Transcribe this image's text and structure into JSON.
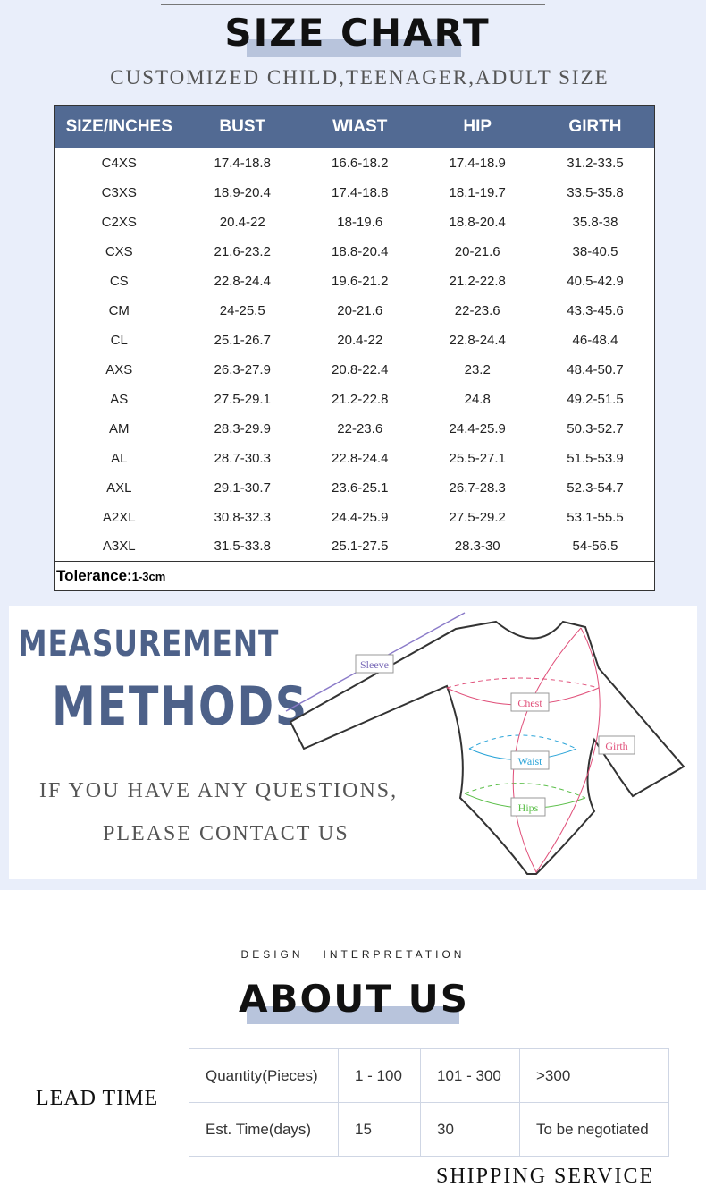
{
  "size_chart": {
    "title": "SIZE CHART",
    "subtitle": "CUSTOMIZED CHILD,TEENAGER,ADULT SIZE",
    "headers": [
      "SIZE/INCHES",
      "BUST",
      "WIAST",
      "HIP",
      "GIRTH"
    ],
    "rows": [
      [
        "C4XS",
        "17.4-18.8",
        "16.6-18.2",
        "17.4-18.9",
        "31.2-33.5"
      ],
      [
        "C3XS",
        "18.9-20.4",
        "17.4-18.8",
        "18.1-19.7",
        "33.5-35.8"
      ],
      [
        "C2XS",
        "20.4-22",
        "18-19.6",
        "18.8-20.4",
        "35.8-38"
      ],
      [
        "CXS",
        "21.6-23.2",
        "18.8-20.4",
        "20-21.6",
        "38-40.5"
      ],
      [
        "CS",
        "22.8-24.4",
        "19.6-21.2",
        "21.2-22.8",
        "40.5-42.9"
      ],
      [
        "CM",
        "24-25.5",
        "20-21.6",
        "22-23.6",
        "43.3-45.6"
      ],
      [
        "CL",
        "25.1-26.7",
        "20.4-22",
        "22.8-24.4",
        "46-48.4"
      ],
      [
        "AXS",
        "26.3-27.9",
        "20.8-22.4",
        "23.2",
        "48.4-50.7"
      ],
      [
        "AS",
        "27.5-29.1",
        "21.2-22.8",
        "24.8",
        "49.2-51.5"
      ],
      [
        "AM",
        "28.3-29.9",
        "22-23.6",
        "24.4-25.9",
        "50.3-52.7"
      ],
      [
        "AL",
        "28.7-30.3",
        "22.8-24.4",
        "25.5-27.1",
        "51.5-53.9"
      ],
      [
        "AXL",
        "29.1-30.7",
        "23.6-25.1",
        "26.7-28.3",
        "52.3-54.7"
      ],
      [
        "A2XL",
        "30.8-32.3",
        "24.4-25.9",
        "27.5-29.2",
        "53.1-55.5"
      ],
      [
        "A3XL",
        "31.5-33.8",
        "25.1-27.5",
        "28.3-30",
        "54-56.5"
      ]
    ],
    "tolerance_label": "Tolerance:",
    "tolerance_value": "1-3cm",
    "header_color": "#526a93"
  },
  "measurement": {
    "title_line1": "MEASUREMENT",
    "title_line2": "METHODS",
    "contact_line1": "IF YOU HAVE ANY QUESTIONS,",
    "contact_line2": "PLEASE CONTACT US",
    "labels": {
      "sleeve": "Sleeve",
      "chest": "Chest",
      "waist": "Waist",
      "hips": "Hips",
      "girth": "Girth"
    }
  },
  "about": {
    "kicker": "DESIGN   INTERPRETATION",
    "title": "ABOUT US"
  },
  "lead_time": {
    "label": "LEAD TIME",
    "rows": [
      [
        "Quantity(Pieces)",
        "1 - 100",
        "101 - 300",
        ">300"
      ],
      [
        "Est. Time(days)",
        "15",
        "30",
        "To be negotiated"
      ]
    ]
  },
  "shipping": {
    "label": "SHIPPING SERVICE"
  }
}
